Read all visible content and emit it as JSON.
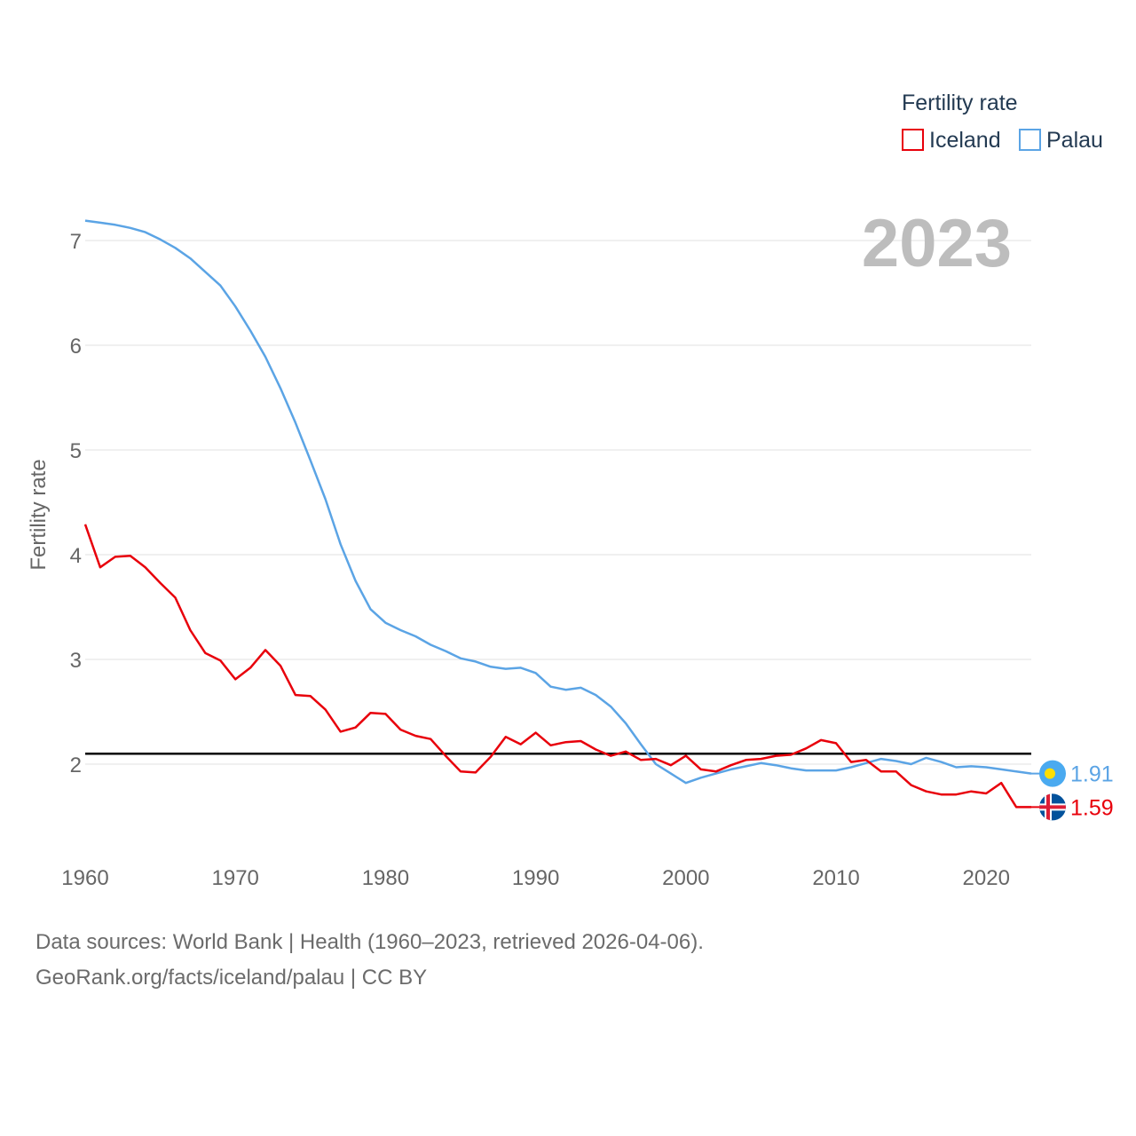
{
  "chart_data": {
    "type": "line",
    "title": "",
    "ylabel": "Fertility rate",
    "xlabel": "",
    "year_label": "2023",
    "legend_title": "Fertility rate",
    "legend_position": "top-right",
    "xlim": [
      1960,
      2023
    ],
    "ylim": [
      1.25,
      7.25
    ],
    "x_ticks": [
      1960,
      1970,
      1980,
      1990,
      2000,
      2010,
      2020
    ],
    "y_ticks": [
      2,
      3,
      4,
      5,
      6,
      7
    ],
    "reference_line": {
      "y": 2.1,
      "color": "#000000"
    },
    "x": [
      1960,
      1961,
      1962,
      1963,
      1964,
      1965,
      1966,
      1967,
      1968,
      1969,
      1970,
      1971,
      1972,
      1973,
      1974,
      1975,
      1976,
      1977,
      1978,
      1979,
      1980,
      1981,
      1982,
      1983,
      1984,
      1985,
      1986,
      1987,
      1988,
      1989,
      1990,
      1991,
      1992,
      1993,
      1994,
      1995,
      1996,
      1997,
      1998,
      1999,
      2000,
      2001,
      2002,
      2003,
      2004,
      2005,
      2006,
      2007,
      2008,
      2009,
      2010,
      2011,
      2012,
      2013,
      2014,
      2015,
      2016,
      2017,
      2018,
      2019,
      2020,
      2021,
      2022,
      2023
    ],
    "series": [
      {
        "name": "Iceland",
        "color": "#e8000b",
        "end_label": "1.59",
        "values": [
          4.29,
          3.88,
          3.98,
          3.99,
          3.88,
          3.73,
          3.59,
          3.28,
          3.06,
          2.99,
          2.81,
          2.92,
          3.09,
          2.94,
          2.66,
          2.65,
          2.52,
          2.31,
          2.35,
          2.49,
          2.48,
          2.33,
          2.27,
          2.24,
          2.08,
          1.93,
          1.92,
          2.07,
          2.26,
          2.19,
          2.3,
          2.18,
          2.21,
          2.22,
          2.14,
          2.08,
          2.12,
          2.04,
          2.05,
          1.99,
          2.08,
          1.95,
          1.93,
          1.99,
          2.04,
          2.05,
          2.08,
          2.09,
          2.15,
          2.23,
          2.2,
          2.02,
          2.04,
          1.93,
          1.93,
          1.8,
          1.74,
          1.71,
          1.71,
          1.74,
          1.72,
          1.82,
          1.59,
          1.59
        ]
      },
      {
        "name": "Palau",
        "color": "#5ba4e5",
        "end_label": "1.91",
        "values": [
          7.19,
          7.17,
          7.15,
          7.12,
          7.08,
          7.01,
          6.93,
          6.83,
          6.7,
          6.57,
          6.37,
          6.14,
          5.89,
          5.59,
          5.26,
          4.9,
          4.53,
          4.1,
          3.75,
          3.48,
          3.35,
          3.28,
          3.22,
          3.14,
          3.08,
          3.01,
          2.98,
          2.93,
          2.91,
          2.92,
          2.87,
          2.74,
          2.71,
          2.73,
          2.66,
          2.55,
          2.39,
          2.19,
          2.0,
          1.91,
          1.82,
          1.87,
          1.91,
          1.95,
          1.98,
          2.01,
          1.99,
          1.96,
          1.94,
          1.94,
          1.94,
          1.97,
          2.01,
          2.05,
          2.03,
          2.0,
          2.06,
          2.02,
          1.97,
          1.98,
          1.97,
          1.95,
          1.93,
          1.91
        ]
      }
    ]
  },
  "footer": {
    "line1": "Data sources: World Bank | Health (1960–2023, retrieved 2026-04-06).",
    "line2": "GeoRank.org/facts/iceland/palau | CC BY"
  }
}
